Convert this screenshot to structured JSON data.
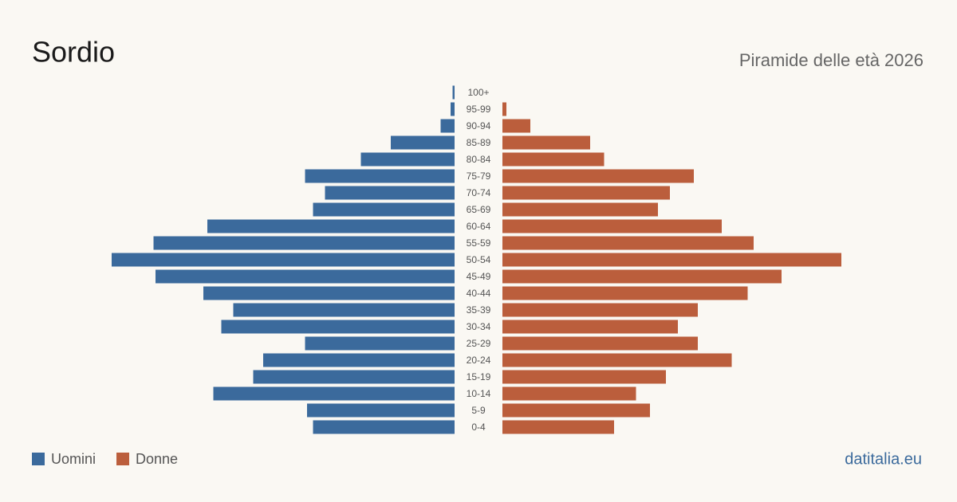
{
  "chart_data": {
    "type": "pyramid",
    "title": "Sordio",
    "subtitle": "Piramide delle età 2026",
    "source": "datitalia.eu",
    "categories": [
      "100+",
      "95-99",
      "90-94",
      "85-89",
      "80-84",
      "75-79",
      "70-74",
      "65-69",
      "60-64",
      "55-59",
      "50-54",
      "45-49",
      "40-44",
      "35-39",
      "30-34",
      "25-29",
      "20-24",
      "15-19",
      "10-14",
      "5-9",
      "0-4"
    ],
    "series": [
      {
        "name": "Uomini",
        "color": "#3b6a9c",
        "values": [
          1,
          2,
          7,
          32,
          47,
          75,
          65,
          71,
          124,
          151,
          172,
          150,
          126,
          111,
          117,
          75,
          96,
          101,
          121,
          74,
          71
        ]
      },
      {
        "name": "Donne",
        "color": "#bb5e3c",
        "values": [
          0,
          2,
          14,
          44,
          51,
          96,
          84,
          78,
          110,
          126,
          170,
          140,
          123,
          98,
          88,
          98,
          115,
          82,
          67,
          74,
          56
        ]
      }
    ],
    "xlim": [
      0,
      172
    ]
  }
}
